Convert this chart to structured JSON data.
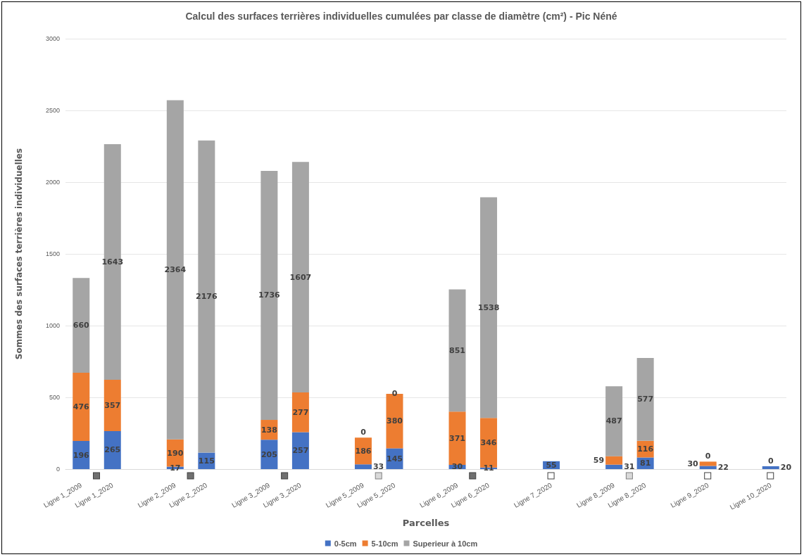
{
  "chart_data": {
    "type": "bar",
    "stacked": true,
    "title": "Calcul des surfaces terrières individuelles cumulées par classe de diamètre (cm²) - Pic Néné",
    "xlabel": "Parcelles",
    "ylabel": "Sommes des surfaces terrières individuelles",
    "categories": [
      "Ligne 1_2009",
      "Ligne 1_2020",
      null,
      "Ligne 2_2009",
      "Ligne 2_2020",
      null,
      "Ligne 3_2009",
      "Ligne 3_2020",
      null,
      "Ligne 5_2009",
      "Ligne 5_2020",
      null,
      "Ligne 6_2009",
      "Ligne 6_2020",
      null,
      "Ligne 7_2020",
      null,
      "Ligne 8_2009",
      "Ligne 8_2020",
      null,
      "Ligne 9_2020",
      null,
      "Ligne 10_2020"
    ],
    "series": [
      {
        "name": "0-5cm",
        "color": "#4472c4",
        "values": [
          196,
          265,
          null,
          17,
          115,
          null,
          205,
          257,
          null,
          33,
          145,
          null,
          30,
          11,
          null,
          55,
          null,
          31,
          81,
          null,
          22,
          null,
          20
        ]
      },
      {
        "name": "5-10cm",
        "color": "#ed7d31",
        "values": [
          476,
          357,
          null,
          190,
          null,
          null,
          138,
          277,
          null,
          186,
          380,
          null,
          371,
          346,
          null,
          null,
          null,
          59,
          116,
          null,
          30,
          null,
          null
        ]
      },
      {
        "name": "Superieur à 10cm",
        "color": "#a5a5a5",
        "values": [
          660,
          1643,
          null,
          2364,
          2176,
          null,
          1736,
          1607,
          null,
          0,
          0,
          null,
          851,
          1538,
          null,
          null,
          null,
          487,
          577,
          null,
          0,
          null,
          0
        ]
      }
    ],
    "ylim": [
      0,
      3000
    ],
    "yticks": [
      0,
      500,
      1000,
      1500,
      2000,
      2500,
      3000
    ],
    "grid": "y",
    "legend": "bottom",
    "data_labels": true
  }
}
